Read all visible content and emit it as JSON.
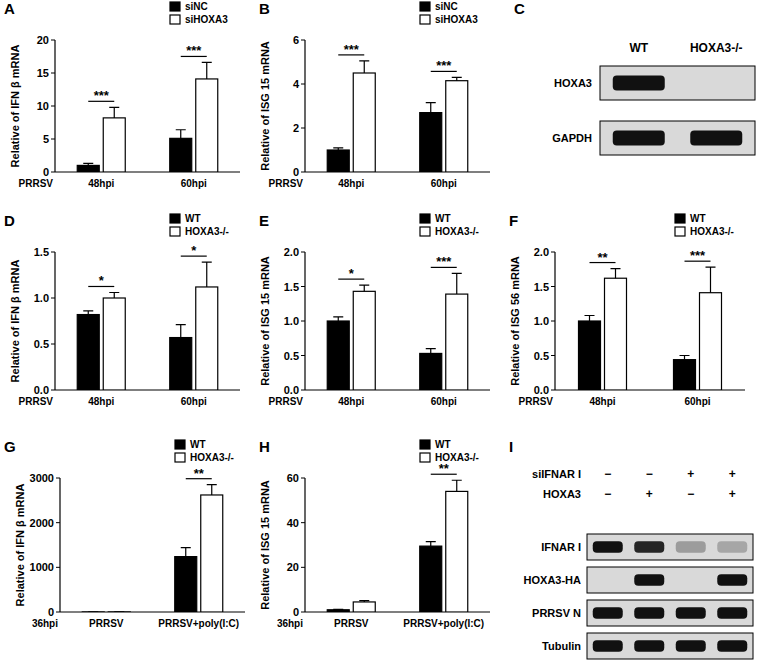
{
  "chart_data": [
    {
      "type": "bar",
      "title": "A",
      "ylabel": "Relative of IFN β mRNA",
      "xlabel": "PRRSV",
      "categories": [
        "48hpi",
        "60hpi"
      ],
      "series": [
        {
          "name": "siNC",
          "color": "#000000",
          "values": [
            1.0,
            5.1
          ],
          "errors": [
            0.3,
            1.3
          ]
        },
        {
          "name": "siHOXA3",
          "color": "#ffffff",
          "values": [
            8.2,
            14.1
          ],
          "errors": [
            1.6,
            2.5
          ]
        }
      ],
      "annotations": [
        "***",
        "***"
      ],
      "ylim": [
        0,
        20
      ],
      "yticks": [
        0,
        5,
        10,
        15,
        20
      ],
      "legend": "top-right"
    },
    {
      "type": "bar",
      "title": "B",
      "ylabel": "Relative of ISG 15 mRNA",
      "xlabel": "PRRSV",
      "categories": [
        "48hpi",
        "60hpi"
      ],
      "series": [
        {
          "name": "siNC",
          "color": "#000000",
          "values": [
            1.0,
            2.7
          ],
          "errors": [
            0.1,
            0.45
          ]
        },
        {
          "name": "siHOXA3",
          "color": "#ffffff",
          "values": [
            4.5,
            4.15
          ],
          "errors": [
            0.55,
            0.15
          ]
        }
      ],
      "annotations": [
        "***",
        "***"
      ],
      "ylim": [
        0,
        6
      ],
      "yticks": [
        0,
        2,
        4,
        6
      ],
      "legend": "top-right"
    },
    {
      "type": "blot",
      "title": "C",
      "lanes": [
        "WT",
        "HOXA3-/-"
      ],
      "rows": [
        {
          "name": "HOXA3",
          "values": [
            1,
            0
          ]
        },
        {
          "name": "GAPDH",
          "values": [
            1,
            1
          ]
        }
      ]
    },
    {
      "type": "bar",
      "title": "D",
      "ylabel": "Relative of IFN β mRNA",
      "xlabel": "PRRSV",
      "categories": [
        "48hpi",
        "60hpi"
      ],
      "series": [
        {
          "name": "WT",
          "color": "#000000",
          "values": [
            0.82,
            0.57
          ],
          "errors": [
            0.04,
            0.14
          ]
        },
        {
          "name": "HOXA3-/-",
          "color": "#ffffff",
          "values": [
            1.0,
            1.12
          ],
          "errors": [
            0.06,
            0.27
          ]
        }
      ],
      "annotations": [
        "*",
        "*"
      ],
      "ylim": [
        0,
        1.5
      ],
      "yticks": [
        {
          "value": 0,
          "label": "0.0"
        },
        0.5,
        {
          "value": 1,
          "label": "1.0"
        },
        1.5
      ],
      "legend": "top-right"
    },
    {
      "type": "bar",
      "title": "E",
      "ylabel": "Relative of ISG 15 mRNA",
      "xlabel": "PRRSV",
      "categories": [
        "48hpi",
        "60hpi"
      ],
      "series": [
        {
          "name": "WT",
          "color": "#000000",
          "values": [
            1.0,
            0.53
          ],
          "errors": [
            0.06,
            0.07
          ]
        },
        {
          "name": "HOXA3-/-",
          "color": "#ffffff",
          "values": [
            1.43,
            1.39
          ],
          "errors": [
            0.09,
            0.3
          ]
        }
      ],
      "annotations": [
        "*",
        "***"
      ],
      "ylim": [
        0,
        2
      ],
      "yticks": [
        {
          "value": 0,
          "label": "0.0"
        },
        0.5,
        {
          "value": 1,
          "label": "1.0"
        },
        1.5,
        {
          "value": 2,
          "label": "2.0"
        }
      ],
      "legend": "top-right"
    },
    {
      "type": "bar",
      "title": "F",
      "ylabel": "Relative of ISG 56 mRNA",
      "xlabel": "PRRSV",
      "categories": [
        "48hpi",
        "60hpi"
      ],
      "series": [
        {
          "name": "WT",
          "color": "#000000",
          "values": [
            1.0,
            0.44
          ],
          "errors": [
            0.08,
            0.06
          ]
        },
        {
          "name": "HOXA3-/-",
          "color": "#ffffff",
          "values": [
            1.62,
            1.41
          ],
          "errors": [
            0.14,
            0.37
          ]
        }
      ],
      "annotations": [
        "**",
        "***"
      ],
      "ylim": [
        0,
        2
      ],
      "yticks": [
        {
          "value": 0,
          "label": "0.0"
        },
        0.5,
        {
          "value": 1,
          "label": "1.0"
        },
        1.5,
        {
          "value": 2,
          "label": "2.0"
        }
      ],
      "legend": "top-right"
    },
    {
      "type": "bar",
      "title": "G",
      "ylabel": "Relative of IFN β mRNA",
      "xlabel": "36hpi",
      "categories": [
        "PRRSV",
        "PRRSV+poly(I:C)"
      ],
      "series": [
        {
          "name": "WT",
          "color": "#000000",
          "values": [
            1,
            1240
          ],
          "errors": [
            0,
            200
          ]
        },
        {
          "name": "HOXA3-/-",
          "color": "#ffffff",
          "values": [
            2,
            2620
          ],
          "errors": [
            0,
            230
          ]
        }
      ],
      "annotations": [
        null,
        "**"
      ],
      "ylim": [
        0,
        3000
      ],
      "yticks": [
        0,
        1000,
        2000,
        3000
      ],
      "legend": "top-right"
    },
    {
      "type": "bar",
      "title": "H",
      "ylabel": "Relative of ISG 15 mRNA",
      "xlabel": "36hpi",
      "categories": [
        "PRRSV",
        "PRRSV+poly(I:C)"
      ],
      "series": [
        {
          "name": "WT",
          "color": "#000000",
          "values": [
            1.0,
            29.5
          ],
          "errors": [
            0.2,
            2
          ]
        },
        {
          "name": "HOXA3-/-",
          "color": "#ffffff",
          "values": [
            4.5,
            54
          ],
          "errors": [
            0.6,
            5
          ]
        }
      ],
      "annotations": [
        null,
        "**"
      ],
      "ylim": [
        0,
        60
      ],
      "yticks": [
        0,
        20,
        40,
        60
      ],
      "legend": "top-right"
    },
    {
      "type": "blot",
      "title": "I",
      "conditions": [
        {
          "name": "siIFNAR I",
          "values": [
            "−",
            "−",
            "+",
            "+"
          ]
        },
        {
          "name": "HOXA3",
          "values": [
            "−",
            "+",
            "−",
            "+"
          ]
        }
      ],
      "rows": [
        {
          "name": "IFNAR I",
          "values": [
            1,
            0.9,
            0.3,
            0.25
          ]
        },
        {
          "name": "HOXA3-HA",
          "values": [
            0,
            1,
            0,
            1
          ]
        },
        {
          "name": "PRRSV N",
          "values": [
            1,
            1,
            1,
            1
          ]
        },
        {
          "name": "Tubulin",
          "values": [
            1,
            1,
            1,
            1
          ]
        }
      ]
    }
  ]
}
